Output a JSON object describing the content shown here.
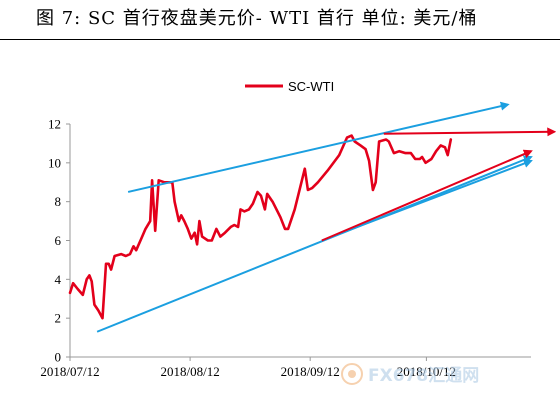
{
  "title": "图 7: SC 首行夜盘美元价- WTI 首行  单位: 美元/桶",
  "watermark": "FX678汇通网",
  "chart_data": {
    "type": "line",
    "legend": [
      "SC-WTI"
    ],
    "legend_placement": "top-center",
    "grid": false,
    "x_tick_labels": [
      "2018/07/12",
      "2018/08/12",
      "2018/09/12",
      "2018/10/12"
    ],
    "x_ticks_days": [
      0,
      31,
      62,
      92
    ],
    "xlim_days": [
      0,
      119
    ],
    "y_ticks": [
      "0",
      "2",
      "4",
      "6",
      "8",
      "10",
      "12"
    ],
    "ylim": [
      0,
      12
    ],
    "series": [
      {
        "name": "SC-WTI",
        "color": "#e3001b",
        "points": [
          [
            0.0,
            3.3
          ],
          [
            0.8,
            3.8
          ],
          [
            2.0,
            3.5
          ],
          [
            3.3,
            3.2
          ],
          [
            4.3,
            4.0
          ],
          [
            5.0,
            4.2
          ],
          [
            5.6,
            3.9
          ],
          [
            6.3,
            2.7
          ],
          [
            7.3,
            2.4
          ],
          [
            8.4,
            2.0
          ],
          [
            9.3,
            4.8
          ],
          [
            10.0,
            4.8
          ],
          [
            10.6,
            4.5
          ],
          [
            11.5,
            5.2
          ],
          [
            13.2,
            5.3
          ],
          [
            14.4,
            5.2
          ],
          [
            15.5,
            5.3
          ],
          [
            16.4,
            5.7
          ],
          [
            17.1,
            5.5
          ],
          [
            18.4,
            6.1
          ],
          [
            19.5,
            6.6
          ],
          [
            20.7,
            7.0
          ],
          [
            21.2,
            9.1
          ],
          [
            22.0,
            6.5
          ],
          [
            22.9,
            9.1
          ],
          [
            24.4,
            9.0
          ],
          [
            26.4,
            9.0
          ],
          [
            27.0,
            8.0
          ],
          [
            28.1,
            7.0
          ],
          [
            28.7,
            7.3
          ],
          [
            29.5,
            7.0
          ],
          [
            30.4,
            6.6
          ],
          [
            31.3,
            6.1
          ],
          [
            32.2,
            6.4
          ],
          [
            32.8,
            5.8
          ],
          [
            33.4,
            7.0
          ],
          [
            34.1,
            6.2
          ],
          [
            35.6,
            6.0
          ],
          [
            36.6,
            6.0
          ],
          [
            37.8,
            6.6
          ],
          [
            38.8,
            6.2
          ],
          [
            40.0,
            6.4
          ],
          [
            41.5,
            6.7
          ],
          [
            42.4,
            6.8
          ],
          [
            43.4,
            6.7
          ],
          [
            44.0,
            7.6
          ],
          [
            45.0,
            7.5
          ],
          [
            46.2,
            7.6
          ],
          [
            47.2,
            7.9
          ],
          [
            48.4,
            8.5
          ],
          [
            49.3,
            8.3
          ],
          [
            50.3,
            7.6
          ],
          [
            50.9,
            8.4
          ],
          [
            52.3,
            8.0
          ],
          [
            53.3,
            7.6
          ],
          [
            54.3,
            7.2
          ],
          [
            55.5,
            6.6
          ],
          [
            56.3,
            6.6
          ],
          [
            58.0,
            7.6
          ],
          [
            59.5,
            8.8
          ],
          [
            60.6,
            9.7
          ],
          [
            61.4,
            8.6
          ],
          [
            62.5,
            8.7
          ],
          [
            64.0,
            9.0
          ],
          [
            66.5,
            9.6
          ],
          [
            69.5,
            10.4
          ],
          [
            71.5,
            11.3
          ],
          [
            72.7,
            11.4
          ],
          [
            73.5,
            11.1
          ],
          [
            75.0,
            10.9
          ],
          [
            76.3,
            10.7
          ],
          [
            77.2,
            10.1
          ],
          [
            78.2,
            8.6
          ],
          [
            78.9,
            9.0
          ],
          [
            79.8,
            11.1
          ],
          [
            81.6,
            11.2
          ],
          [
            82.3,
            11.1
          ],
          [
            83.6,
            10.5
          ],
          [
            85.0,
            10.6
          ],
          [
            86.6,
            10.5
          ],
          [
            88.0,
            10.5
          ],
          [
            89.1,
            10.2
          ],
          [
            90.3,
            10.2
          ],
          [
            90.9,
            10.3
          ],
          [
            91.8,
            10.0
          ],
          [
            93.3,
            10.2
          ],
          [
            94.5,
            10.6
          ],
          [
            95.7,
            10.9
          ],
          [
            96.8,
            10.8
          ],
          [
            97.5,
            10.4
          ],
          [
            98.3,
            11.2
          ]
        ]
      }
    ],
    "annotations": [
      {
        "type": "arrow",
        "color": "#1b9fe0",
        "from": [
          15.0,
          8.5
        ],
        "to": [
          113.0,
          13.0
        ]
      },
      {
        "type": "arrow",
        "color": "#1b9fe0",
        "from": [
          7.0,
          1.3
        ],
        "to": [
          119.0,
          10.3
        ]
      },
      {
        "type": "arrow",
        "color": "#1b9fe0",
        "from": [
          65.0,
          6.0
        ],
        "to": [
          119.0,
          10.1
        ]
      },
      {
        "type": "arrow",
        "color": "#e3001b",
        "from": [
          81.0,
          11.5
        ],
        "to": [
          125.0,
          11.6
        ]
      },
      {
        "type": "arrow",
        "color": "#e3001b",
        "from": [
          65.0,
          6.0
        ],
        "to": [
          119.0,
          10.6
        ]
      }
    ]
  }
}
